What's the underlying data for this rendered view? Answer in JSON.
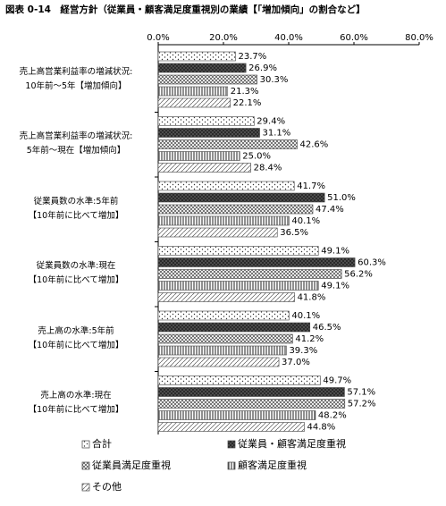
{
  "chart_data": {
    "type": "hbar",
    "title": "図表 0-14　経営方針（従業員・顧客満足度重視別の業績【「増加傾向」の割合など】",
    "categories": [
      "売上高営業利益率の増減状況:\n10年前～5年【増加傾向】",
      "売上高営業利益率の増減状況:\n5年前～現在【増加傾向】",
      "従業員数の水準:5年前\n【10年前に比べて増加】",
      "従業員数の水準:現在\n【10年前に比べて増加】",
      "売上高の水準:5年前\n【10年前に比べて増加】",
      "売上高の水準:現在\n【10年前に比べて増加】"
    ],
    "xlim": [
      0,
      80
    ],
    "xticks": [
      {
        "value": 0,
        "label": "0.0%"
      },
      {
        "value": 20,
        "label": "20.0%"
      },
      {
        "value": 40,
        "label": "40.0%"
      },
      {
        "value": 60,
        "label": "60.0%"
      },
      {
        "value": 80,
        "label": "80.0%"
      }
    ],
    "series": [
      {
        "name": "合計",
        "color": "#444444",
        "pattern": "dots",
        "values": [
          23.7,
          29.4,
          41.7,
          49.1,
          40.1,
          49.7
        ],
        "value_labels": [
          "23.7%",
          "29.4%",
          "41.7%",
          "49.1%",
          "40.1%",
          "49.7%"
        ]
      },
      {
        "name": "従業員・顧客満足度重視",
        "color": "#444444",
        "pattern": "dark",
        "values": [
          26.9,
          31.1,
          51.0,
          60.3,
          46.5,
          57.1
        ],
        "value_labels": [
          "26.9%",
          "31.1%",
          "51.0%",
          "60.3%",
          "46.5%",
          "57.1%"
        ]
      },
      {
        "name": "従業員満足度重視",
        "color": "#444444",
        "pattern": "crosshatch",
        "values": [
          30.3,
          42.6,
          47.4,
          56.2,
          41.2,
          57.2
        ],
        "value_labels": [
          "30.3%",
          "42.6%",
          "47.4%",
          "56.2%",
          "41.2%",
          "57.2%"
        ]
      },
      {
        "name": "顧客満足度重視",
        "color": "#444444",
        "pattern": "vertical",
        "values": [
          21.3,
          25.0,
          40.1,
          49.1,
          39.3,
          48.2
        ],
        "value_labels": [
          "21.3%",
          "25.0%",
          "40.1%",
          "49.1%",
          "39.3%",
          "48.2%"
        ]
      },
      {
        "name": "その他",
        "color": "#444444",
        "pattern": "diagonal",
        "values": [
          22.1,
          28.4,
          36.5,
          41.8,
          37.0,
          44.8
        ],
        "value_labels": [
          "22.1%",
          "28.4%",
          "36.5%",
          "41.8%",
          "37.0%",
          "44.8%"
        ]
      }
    ]
  }
}
